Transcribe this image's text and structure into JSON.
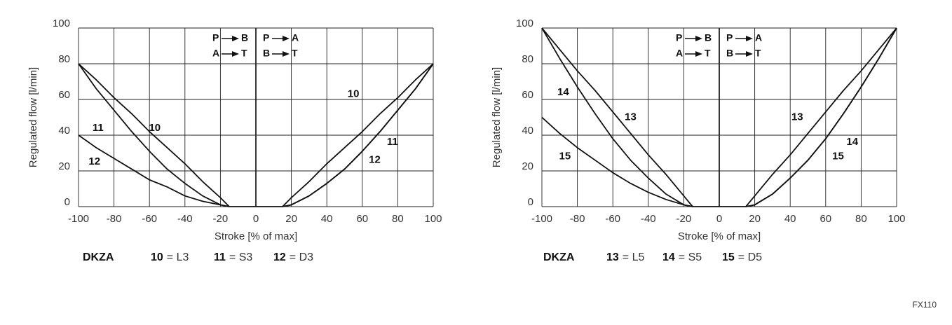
{
  "figure_id": "FX110",
  "chart_data": [
    {
      "type": "line",
      "x_label": "Stroke [% of max]",
      "y_label": "Regulated flow [l/min]",
      "x": [
        -100,
        -90,
        -80,
        -70,
        -60,
        -50,
        -40,
        -30,
        -20,
        -15,
        0,
        15,
        20,
        30,
        40,
        50,
        60,
        70,
        80,
        90,
        100
      ],
      "series": [
        {
          "name": "10",
          "description": "= L3",
          "color": "#111111",
          "values": [
            80,
            71,
            61,
            52,
            42,
            33,
            24,
            14,
            5,
            0,
            0,
            0,
            5,
            14,
            24,
            33,
            42,
            52,
            61,
            71,
            80
          ]
        },
        {
          "name": "11",
          "description": "= S3",
          "color": "#111111",
          "values": [
            80,
            66,
            54,
            42,
            31,
            21,
            13,
            6,
            1,
            0,
            null,
            0,
            1,
            6,
            13,
            21,
            31,
            42,
            54,
            66,
            80
          ]
        },
        {
          "name": "12",
          "description": "= D3",
          "color": "#111111",
          "values": [
            40,
            33,
            27,
            21,
            15,
            11,
            6,
            3,
            1,
            0,
            null,
            0,
            1,
            6,
            13,
            21,
            31,
            42,
            54,
            66,
            80
          ]
        }
      ],
      "annotations": [
        {
          "text": "10",
          "x": -57,
          "y": 44
        },
        {
          "text": "11",
          "x": -89,
          "y": 44
        },
        {
          "text": "12",
          "x": -91,
          "y": 25
        },
        {
          "text": "10",
          "x": 55,
          "y": 63
        },
        {
          "text": "11",
          "x": 77,
          "y": 36
        },
        {
          "text": "12",
          "x": 67,
          "y": 26
        }
      ],
      "direction_labels": {
        "left": [
          [
            "P",
            "B"
          ],
          [
            "A",
            "T"
          ]
        ],
        "right": [
          [
            "P",
            "A"
          ],
          [
            "B",
            "T"
          ]
        ]
      },
      "caption_title": "DKZA",
      "xlim": [
        -100,
        100
      ],
      "ylim": [
        0,
        100
      ],
      "xticks": [
        -100,
        -80,
        -60,
        -40,
        -20,
        0,
        20,
        40,
        60,
        80,
        100
      ],
      "yticks": [
        0,
        20,
        40,
        60,
        80,
        100
      ],
      "grid": true
    },
    {
      "type": "line",
      "x_label": "Stroke [% of max]",
      "y_label": "Regulated flow [l/min]",
      "x": [
        -100,
        -90,
        -80,
        -70,
        -60,
        -50,
        -40,
        -30,
        -20,
        -15,
        0,
        15,
        20,
        30,
        40,
        50,
        60,
        70,
        80,
        90,
        100
      ],
      "series": [
        {
          "name": "13",
          "description": "= L5",
          "color": "#111111",
          "values": [
            100,
            88,
            76,
            65,
            53,
            41,
            29,
            18,
            6,
            0,
            0,
            0,
            6,
            18,
            29,
            41,
            53,
            65,
            76,
            88,
            100
          ]
        },
        {
          "name": "14",
          "description": "= S5",
          "color": "#111111",
          "values": [
            100,
            83,
            67,
            52,
            38,
            26,
            16,
            7,
            1,
            0,
            null,
            0,
            1,
            7,
            16,
            26,
            38,
            52,
            67,
            83,
            100
          ]
        },
        {
          "name": "15",
          "description": "= D5",
          "color": "#111111",
          "values": [
            50,
            41,
            33,
            26,
            19,
            13,
            8,
            4,
            1,
            0,
            null,
            0,
            1,
            7,
            16,
            26,
            38,
            52,
            67,
            83,
            100
          ]
        }
      ],
      "annotations": [
        {
          "text": "14",
          "x": -88,
          "y": 64
        },
        {
          "text": "13",
          "x": -50,
          "y": 50
        },
        {
          "text": "15",
          "x": -87,
          "y": 28
        },
        {
          "text": "13",
          "x": 44,
          "y": 50
        },
        {
          "text": "14",
          "x": 75,
          "y": 36
        },
        {
          "text": "15",
          "x": 67,
          "y": 28
        }
      ],
      "direction_labels": {
        "left": [
          [
            "P",
            "B"
          ],
          [
            "A",
            "T"
          ]
        ],
        "right": [
          [
            "P",
            "A"
          ],
          [
            "B",
            "T"
          ]
        ]
      },
      "caption_title": "DKZA",
      "xlim": [
        -100,
        100
      ],
      "ylim": [
        0,
        100
      ],
      "xticks": [
        -100,
        -80,
        -60,
        -40,
        -20,
        0,
        20,
        40,
        60,
        80,
        100
      ],
      "yticks": [
        0,
        20,
        40,
        60,
        80,
        100
      ],
      "grid": true
    }
  ]
}
